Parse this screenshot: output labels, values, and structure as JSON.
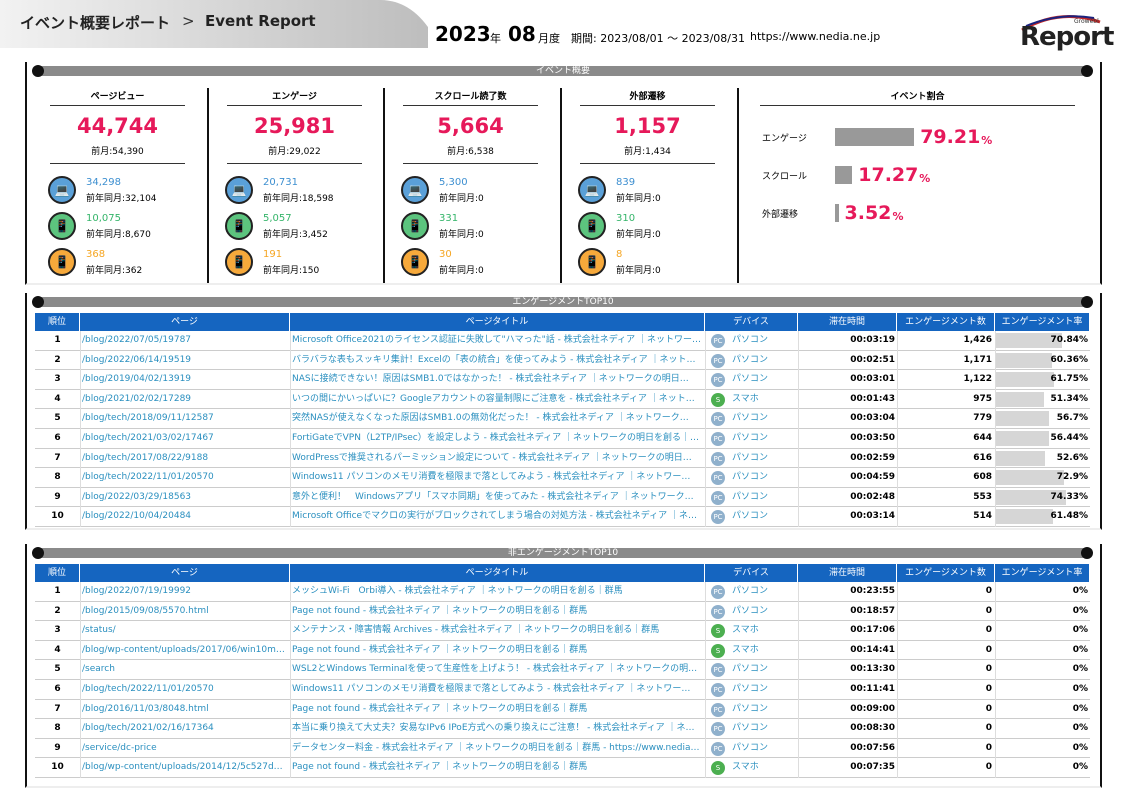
{
  "header": {
    "title": "イベント概要レポート",
    "arrow": ">",
    "subtitle": "Event Report",
    "year": "2023",
    "year_unit": "年",
    "month": "08",
    "month_unit": "月度",
    "period": "期間: 2023/08/01 〜 2023/08/31",
    "url": "https://www.nedia.ne.jp",
    "logo": "Report",
    "logo_small": "Growebl"
  },
  "summary": {
    "title": "イベント概要",
    "cards": [
      {
        "label": "ページビュー",
        "value": "44,744",
        "prev": "前月:54,390",
        "devices": [
          {
            "value": "34,298",
            "yoy": "前年同月:32,104"
          },
          {
            "value": "10,075",
            "yoy": "前年同月:8,670"
          },
          {
            "value": "368",
            "yoy": "前年同月:362"
          }
        ]
      },
      {
        "label": "エンゲージ",
        "value": "25,981",
        "prev": "前月:29,022",
        "devices": [
          {
            "value": "20,731",
            "yoy": "前年同月:18,598"
          },
          {
            "value": "5,057",
            "yoy": "前年同月:3,452"
          },
          {
            "value": "191",
            "yoy": "前年同月:150"
          }
        ]
      },
      {
        "label": "スクロール読了数",
        "value": "5,664",
        "prev": "前月:6,538",
        "devices": [
          {
            "value": "5,300",
            "yoy": "前年同月:0"
          },
          {
            "value": "331",
            "yoy": "前年同月:0"
          },
          {
            "value": "30",
            "yoy": "前年同月:0"
          }
        ]
      },
      {
        "label": "外部遷移",
        "value": "1,157",
        "prev": "前月:1,434",
        "devices": [
          {
            "value": "839",
            "yoy": "前年同月:0"
          },
          {
            "value": "310",
            "yoy": "前年同月:0"
          },
          {
            "value": "8",
            "yoy": "前年同月:0"
          }
        ]
      }
    ],
    "ratio": {
      "title": "イベント割合",
      "rows": [
        {
          "label": "エンゲージ",
          "value": 79.21,
          "unit": "%"
        },
        {
          "label": "スクロール",
          "value": 17.27,
          "unit": "%"
        },
        {
          "label": "外部遷移",
          "value": 3.52,
          "unit": "%"
        }
      ]
    }
  },
  "tables": [
    {
      "title": "エンゲージメントTOP10",
      "headers": [
        "順位",
        "ページ",
        "ページタイトル",
        "デバイス",
        "滞在時間",
        "エンゲージメント数",
        "エンゲージメント率"
      ],
      "rows": [
        [
          "1",
          "/blog/2022/07/05/19787",
          "Microsoft Office2021のライセンス認証に失敗して\"ハマった\"話 - 株式会社ネディア ｜ネットワーク…",
          "PC",
          "パソコン",
          "00:03:19",
          "1,426",
          "70.84%"
        ],
        [
          "2",
          "/blog/2022/06/14/19519",
          "バラバラな表もスッキリ集計！Excelの「表の統合」を使ってみよう - 株式会社ネディア ｜ネット…",
          "PC",
          "パソコン",
          "00:02:51",
          "1,171",
          "60.36%"
        ],
        [
          "3",
          "/blog/2019/04/02/13919",
          "NASに接続できない！原因はSMB1.0ではなかった！ - 株式会社ネディア ｜ネットワークの明日…",
          "PC",
          "パソコン",
          "00:03:01",
          "1,122",
          "61.75%"
        ],
        [
          "4",
          "/blog/2021/02/02/17289",
          "いつの間にかいっぱいに？Googleアカウントの容量制限にご注意を - 株式会社ネディア ｜ネット…",
          "S",
          "スマホ",
          "00:01:43",
          "975",
          "51.34%"
        ],
        [
          "5",
          "/blog/tech/2018/09/11/12587",
          "突然NASが使えなくなった原因はSMB1.0の無効化だった！ - 株式会社ネディア ｜ネットワーク…",
          "PC",
          "パソコン",
          "00:03:04",
          "779",
          "56.7%"
        ],
        [
          "6",
          "/blog/tech/2021/03/02/17467",
          "FortiGateでVPN（L2TP/IPsec）を設定しよう - 株式会社ネディア ｜ネットワークの明日を創る｜…",
          "PC",
          "パソコン",
          "00:03:50",
          "644",
          "56.44%"
        ],
        [
          "7",
          "/blog/tech/2017/08/22/9188",
          "WordPressで推奨されるパーミッション設定について - 株式会社ネディア ｜ネットワークの明日…",
          "PC",
          "パソコン",
          "00:02:59",
          "616",
          "52.6%"
        ],
        [
          "8",
          "/blog/tech/2022/11/01/20570",
          "Windows11 パソコンのメモリ消費を極限まで落としてみよう - 株式会社ネディア ｜ネットワー…",
          "PC",
          "パソコン",
          "00:04:59",
          "608",
          "72.9%"
        ],
        [
          "9",
          "/blog/2022/03/29/18563",
          "意外と便利！　Windowsアプリ「スマホ同期」を使ってみた - 株式会社ネディア ｜ネットワーク…",
          "PC",
          "パソコン",
          "00:02:48",
          "553",
          "74.33%"
        ],
        [
          "10",
          "/blog/2022/10/04/20484",
          "Microsoft Officeでマクロの実行がブロックされてしまう場合の対処方法 - 株式会社ネディア ｜ネ…",
          "PC",
          "パソコン",
          "00:03:14",
          "514",
          "61.48%"
        ]
      ]
    },
    {
      "title": "非エンゲージメントTOP10",
      "headers": [
        "順位",
        "ページ",
        "ページタイトル",
        "デバイス",
        "滞在時間",
        "エンゲージメント数",
        "エンゲージメント率"
      ],
      "rows": [
        [
          "1",
          "/blog/2022/07/19/19992",
          "メッシュWi-Fi　Orbi導入 - 株式会社ネディア ｜ネットワークの明日を創る｜群馬",
          "PC",
          "パソコン",
          "00:23:55",
          "0",
          "0%"
        ],
        [
          "2",
          "/blog/2015/09/08/5570.html",
          "Page not found - 株式会社ネディア ｜ネットワークの明日を創る｜群馬",
          "PC",
          "パソコン",
          "00:18:57",
          "0",
          "0%"
        ],
        [
          "3",
          "/status/",
          "メンテナンス・障害情報 Archives - 株式会社ネディア ｜ネットワークの明日を創る｜群馬",
          "S",
          "スマホ",
          "00:17:06",
          "0",
          "0%"
        ],
        [
          "4",
          "/blog/wp-content/uploads/2017/06/win10mail_…",
          "Page not found - 株式会社ネディア ｜ネットワークの明日を創る｜群馬",
          "S",
          "スマホ",
          "00:14:41",
          "0",
          "0%"
        ],
        [
          "5",
          "/search",
          "WSL2とWindows Terminalを使って生産性を上げよう！ - 株式会社ネディア ｜ネットワークの明…",
          "PC",
          "パソコン",
          "00:13:30",
          "0",
          "0%"
        ],
        [
          "6",
          "/blog/tech/2022/11/01/20570",
          "Windows11 パソコンのメモリ消費を極限まで落としてみよう - 株式会社ネディア ｜ネットワー…",
          "PC",
          "パソコン",
          "00:11:41",
          "0",
          "0%"
        ],
        [
          "7",
          "/blog/2016/11/03/8048.html",
          "Page not found - 株式会社ネディア ｜ネットワークの明日を創る｜群馬",
          "PC",
          "パソコン",
          "00:09:00",
          "0",
          "0%"
        ],
        [
          "8",
          "/blog/tech/2021/02/16/17364",
          "本当に乗り換えて大丈夫？安易なIPv6 IPoE方式への乗り換えにご注意！ - 株式会社ネディア ｜ネ…",
          "PC",
          "パソコン",
          "00:08:30",
          "0",
          "0%"
        ],
        [
          "9",
          "/service/dc-price",
          "データセンター料金 - 株式会社ネディア ｜ネットワークの明日を創る｜群馬 - https://www.nedia…",
          "PC",
          "パソコン",
          "00:07:56",
          "0",
          "0%"
        ],
        [
          "10",
          "/blog/wp-content/uploads/2014/12/5c527d391…",
          "Page not found - 株式会社ネディア ｜ネットワークの明日を創る｜群馬",
          "S",
          "スマホ",
          "00:07:35",
          "0",
          "0%"
        ]
      ]
    }
  ]
}
